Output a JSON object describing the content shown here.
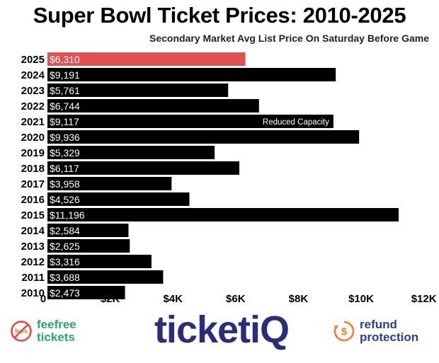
{
  "chart_data": {
    "type": "bar",
    "orientation": "horizontal",
    "title": "Super Bowl Ticket Prices: 2010-2025",
    "subtitle": "Secondary Market Avg List Price On Saturday Before Game",
    "categories": [
      "2025",
      "2024",
      "2023",
      "2022",
      "2021",
      "2020",
      "2019",
      "2018",
      "2017",
      "2016",
      "2015",
      "2014",
      "2013",
      "2012",
      "2011",
      "2010"
    ],
    "values": [
      6310,
      9191,
      5761,
      6744,
      9117,
      9936,
      5329,
      6117,
      3958,
      4526,
      11196,
      2584,
      2625,
      3316,
      3688,
      2473
    ],
    "value_labels": [
      "$6,310",
      "$9,191",
      "$5,761",
      "$6,744",
      "$9,117",
      "$9,936",
      "$5,329",
      "$6,117",
      "$3,958",
      "$4,526",
      "$11,196",
      "$2,584",
      "$2,625",
      "$3,316",
      "$3,688",
      "$2,473"
    ],
    "highlight_index": 0,
    "annotations": [
      {
        "category": "2021",
        "text": "Reduced Capacity"
      }
    ],
    "x_ticks": [
      0,
      2000,
      4000,
      6000,
      8000,
      10000,
      12000
    ],
    "x_tick_labels": [
      "0",
      "$2K",
      "$4K",
      "$6K",
      "$8K",
      "$10K",
      "$12K"
    ],
    "xlim": [
      0,
      12000
    ],
    "grid": false,
    "colors": {
      "bar": "#000000",
      "highlight": "#e05252",
      "label": "#ffffff"
    }
  },
  "footer": {
    "left_brand": {
      "line1": "feefree",
      "line2": "tickets",
      "icon": "no-fees-icon",
      "icon_text": "fees"
    },
    "center_logo": "ticketiQ",
    "right_brand": {
      "line1": "refund",
      "line2": "protection",
      "icon": "refund-dollar-icon",
      "icon_text": "$"
    },
    "colors": {
      "green": "#26aa6c",
      "navy": "#2b2d7c",
      "blue": "#2c3da0",
      "orange": "#f07b2d",
      "red": "#e8453c"
    }
  }
}
